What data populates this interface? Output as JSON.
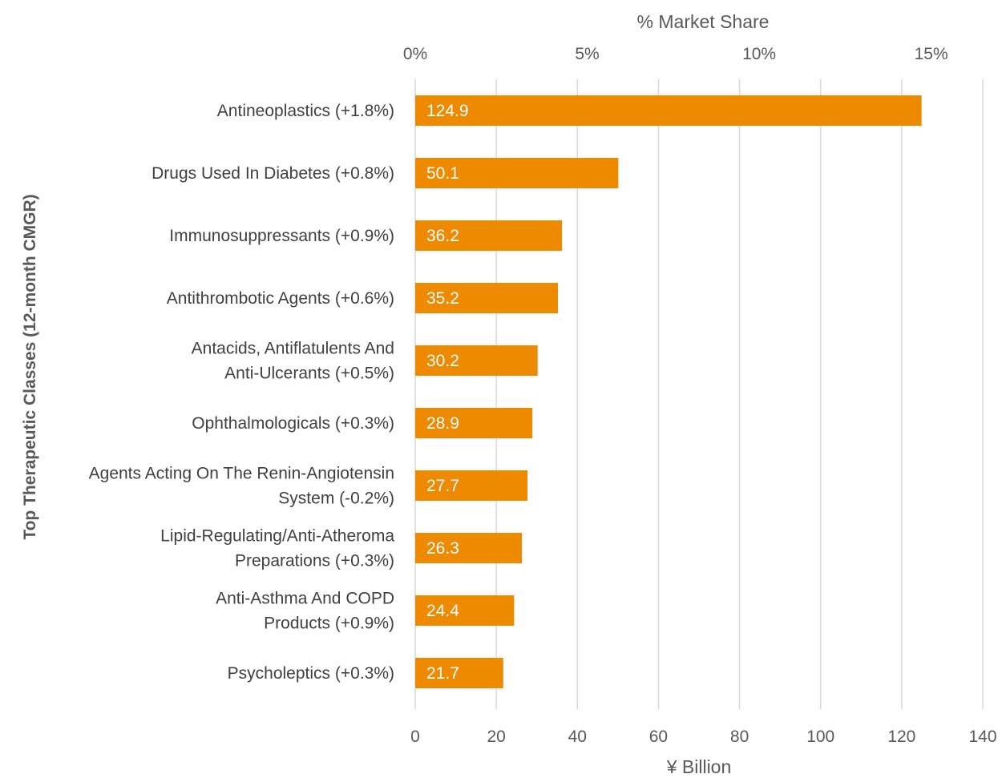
{
  "chart_data": {
    "type": "bar",
    "orientation": "horizontal",
    "categories": [
      [
        "Antineoplastics (+1.8%)"
      ],
      [
        "Drugs Used In Diabetes (+0.8%)"
      ],
      [
        "Immunosuppressants (+0.9%)"
      ],
      [
        "Antithrombotic Agents (+0.6%)"
      ],
      [
        "Antacids, Antiflatulents And",
        "Anti-Ulcerants (+0.5%)"
      ],
      [
        "Ophthalmologicals (+0.3%)"
      ],
      [
        "Agents Acting On The Renin-Angiotensin",
        "System (-0.2%)"
      ],
      [
        "Lipid-Regulating/Anti-Atheroma",
        "Preparations (+0.3%)"
      ],
      [
        "Anti-Asthma And COPD",
        "Products (+0.9%)"
      ],
      [
        "Psycholeptics (+0.3%)"
      ]
    ],
    "values": [
      124.9,
      50.1,
      36.2,
      35.2,
      30.2,
      28.9,
      27.7,
      26.3,
      24.4,
      21.7
    ],
    "data_labels": [
      "124.9",
      "50.1",
      "36.2",
      "35.2",
      "30.2",
      "28.9",
      "27.7",
      "26.3",
      "24.4",
      "21.7"
    ],
    "xlabel": "¥ Billion",
    "ylabel": "Top Therapeutic Classes (12-month CMGR)",
    "xlim": [
      0,
      140
    ],
    "x_ticks": [
      0,
      20,
      40,
      60,
      80,
      100,
      120,
      140
    ],
    "x_tick_labels": [
      "0",
      "20",
      "40",
      "60",
      "80",
      "100",
      "120",
      "140"
    ],
    "secondary_axis": {
      "label": "% Market Share",
      "position": "top",
      "ticks": [
        0,
        5,
        10,
        15
      ],
      "tick_labels": [
        "0%",
        "5%",
        "10%",
        "15%"
      ],
      "range": [
        0,
        16.5
      ]
    },
    "grid": "vertical",
    "bar_color": "#EE8A00",
    "gridline_color": "#D9D9D9"
  }
}
